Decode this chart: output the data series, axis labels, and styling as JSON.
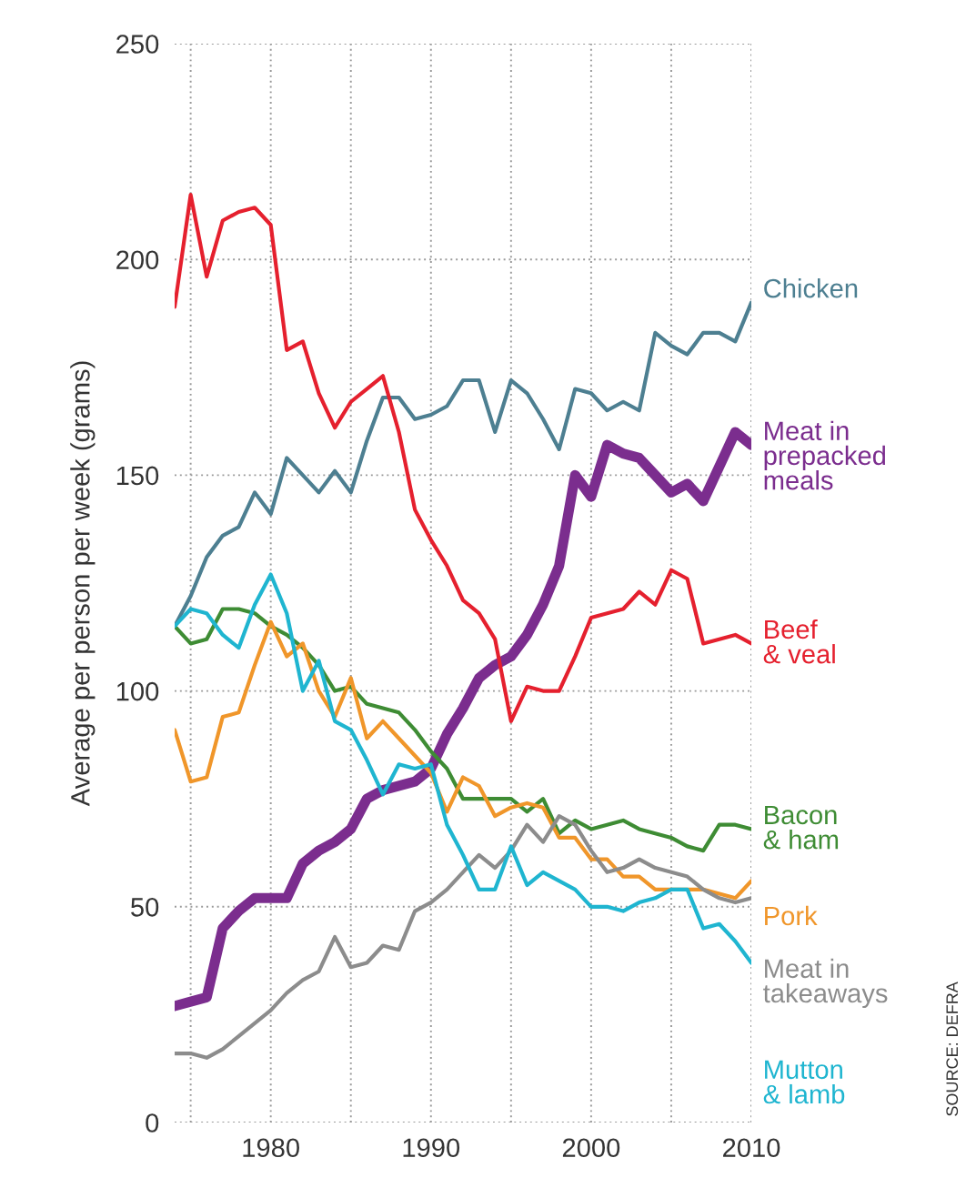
{
  "chart_data": {
    "type": "line",
    "ylabel": "Average per person per week (grams)",
    "x": [
      1974,
      1975,
      1976,
      1977,
      1978,
      1979,
      1980,
      1981,
      1982,
      1983,
      1984,
      1985,
      1986,
      1987,
      1988,
      1989,
      1990,
      1991,
      1992,
      1993,
      1994,
      1995,
      1996,
      1997,
      1998,
      1999,
      2000,
      2001,
      2002,
      2003,
      2004,
      2005,
      2006,
      2007,
      2008,
      2009,
      2010
    ],
    "series": [
      {
        "name": "Chicken",
        "color": "#4d7f91",
        "values": [
          115,
          122,
          131,
          136,
          138,
          146,
          141,
          154,
          150,
          146,
          151,
          146,
          158,
          168,
          168,
          163,
          164,
          166,
          172,
          172,
          160,
          172,
          169,
          163,
          156,
          170,
          169,
          165,
          167,
          165,
          183,
          180,
          178,
          183,
          183,
          181,
          190
        ]
      },
      {
        "name": "Meat in\nprepacked\nmeals",
        "color": "#7b2d8e",
        "values": [
          27,
          28,
          29,
          45,
          49,
          52,
          52,
          52,
          60,
          63,
          65,
          68,
          75,
          77,
          78,
          79,
          82,
          90,
          96,
          103,
          106,
          108,
          113,
          120,
          129,
          150,
          145,
          157,
          155,
          154,
          150,
          146,
          148,
          144,
          152,
          160,
          157
        ]
      },
      {
        "name": "Beef\n& veal",
        "color": "#e5202e",
        "values": [
          189,
          215,
          196,
          209,
          211,
          212,
          208,
          179,
          181,
          169,
          161,
          167,
          170,
          173,
          160,
          142,
          135,
          129,
          121,
          118,
          112,
          93,
          101,
          100,
          100,
          108,
          117,
          118,
          119,
          123,
          120,
          128,
          126,
          111,
          112,
          113,
          111
        ]
      },
      {
        "name": "Bacon\n& ham",
        "color": "#3e8c34",
        "values": [
          115,
          111,
          112,
          119,
          119,
          118,
          115,
          113,
          110,
          106,
          100,
          101,
          97,
          96,
          95,
          91,
          86,
          82,
          75,
          75,
          75,
          75,
          72,
          75,
          67,
          70,
          68,
          69,
          70,
          68,
          67,
          66,
          64,
          63,
          69,
          69,
          68
        ]
      },
      {
        "name": "Pork",
        "color": "#f0962a",
        "values": [
          91,
          79,
          80,
          94,
          95,
          106,
          116,
          108,
          111,
          100,
          94,
          103,
          89,
          93,
          89,
          85,
          81,
          72,
          80,
          78,
          71,
          73,
          74,
          73,
          66,
          66,
          61,
          61,
          57,
          57,
          54,
          54,
          54,
          54,
          53,
          52,
          56
        ]
      },
      {
        "name": "Meat in\ntakeaways",
        "color": "#8c8c8c",
        "values": [
          16,
          16,
          15,
          17,
          20,
          23,
          26,
          30,
          33,
          35,
          43,
          36,
          37,
          41,
          40,
          49,
          51,
          54,
          58,
          62,
          59,
          63,
          69,
          65,
          71,
          69,
          63,
          58,
          59,
          61,
          59,
          58,
          57,
          54,
          52,
          51,
          52
        ]
      },
      {
        "name": "Mutton\n& lamb",
        "color": "#1fb5d0",
        "values": [
          115,
          119,
          118,
          113,
          110,
          120,
          127,
          118,
          100,
          107,
          93,
          91,
          84,
          76,
          83,
          82,
          83,
          69,
          62,
          54,
          54,
          64,
          55,
          58,
          56,
          54,
          50,
          50,
          49,
          51,
          52,
          54,
          54,
          45,
          46,
          42,
          37
        ]
      }
    ],
    "xlim": [
      1974,
      2010
    ],
    "xticks": [
      {
        "value": 1975,
        "label": null
      },
      1980,
      {
        "value": 1985,
        "label": null
      },
      1990,
      {
        "value": 1995,
        "label": null
      },
      2000,
      {
        "value": 2005,
        "label": null
      },
      2010
    ],
    "ylim": [
      0,
      250
    ],
    "yticks": [
      0,
      50,
      100,
      150,
      200,
      250
    ],
    "grid": true,
    "line_style": "solid",
    "annotations": [
      "SOURCE: DEFRA"
    ]
  }
}
